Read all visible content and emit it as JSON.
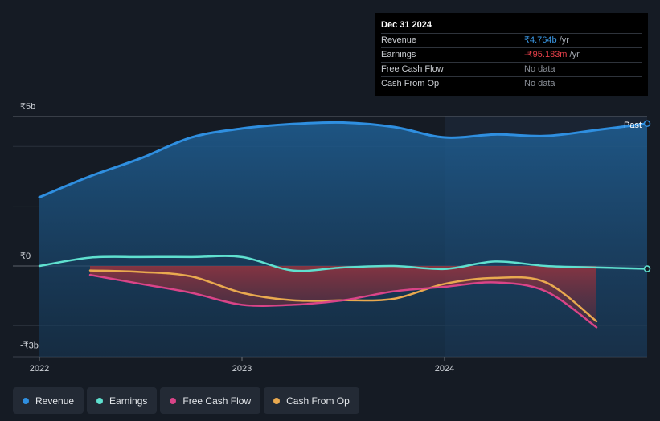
{
  "tooltip": {
    "date": "Dec 31 2024",
    "rows": [
      {
        "label": "Revenue",
        "value": "₹4.764b",
        "unit": " /yr",
        "color": "#3b9ae8"
      },
      {
        "label": "Earnings",
        "value": "-₹95.183m",
        "unit": " /yr",
        "color": "#e8404a"
      },
      {
        "label": "Free Cash Flow",
        "value": "No data",
        "unit": ""
      },
      {
        "label": "Cash From Op",
        "value": "No data",
        "unit": ""
      }
    ]
  },
  "legend": [
    {
      "label": "Revenue",
      "color": "#2f8fe0"
    },
    {
      "label": "Earnings",
      "color": "#5fe0cf"
    },
    {
      "label": "Free Cash Flow",
      "color": "#d94488"
    },
    {
      "label": "Cash From Op",
      "color": "#e9a94f"
    }
  ],
  "chart_data": {
    "type": "area",
    "currency_unit": "₹ billions",
    "ylim": [
      -3,
      5
    ],
    "y_tick_labels": [
      {
        "value": 5,
        "label": "₹5b"
      },
      {
        "value": 0,
        "label": "₹0"
      },
      {
        "value": -3,
        "label": "-₹3b"
      }
    ],
    "xlim": [
      2022,
      2025.0
    ],
    "x_tick_labels": [
      {
        "value": 2022,
        "label": "2022"
      },
      {
        "value": 2023,
        "label": "2023"
      },
      {
        "value": 2024,
        "label": "2024"
      }
    ],
    "past_label": "Past",
    "past_start": 2024.0,
    "series": [
      {
        "name": "Revenue",
        "color": "#2f8fe0",
        "x": [
          2022.0,
          2022.25,
          2022.5,
          2022.75,
          2023.0,
          2023.25,
          2023.5,
          2023.75,
          2024.0,
          2024.25,
          2024.5,
          2024.75,
          2025.0
        ],
        "y": [
          2.3,
          3.0,
          3.6,
          4.3,
          4.6,
          4.75,
          4.8,
          4.65,
          4.3,
          4.4,
          4.35,
          4.55,
          4.764
        ]
      },
      {
        "name": "Earnings",
        "color": "#5fe0cf",
        "x": [
          2022.0,
          2022.25,
          2022.5,
          2022.75,
          2023.0,
          2023.25,
          2023.5,
          2023.75,
          2024.0,
          2024.25,
          2024.5,
          2024.75,
          2025.0
        ],
        "y": [
          0.0,
          0.28,
          0.3,
          0.3,
          0.3,
          -0.15,
          -0.05,
          0.0,
          -0.1,
          0.15,
          0.0,
          -0.05,
          -0.095
        ]
      },
      {
        "name": "Free Cash Flow",
        "color": "#d94488",
        "x": [
          2022.25,
          2022.5,
          2022.75,
          2023.0,
          2023.25,
          2023.5,
          2023.75,
          2024.0,
          2024.25,
          2024.5,
          2024.75
        ],
        "y": [
          -0.3,
          -0.6,
          -0.9,
          -1.3,
          -1.3,
          -1.15,
          -0.85,
          -0.7,
          -0.55,
          -0.85,
          -2.05
        ]
      },
      {
        "name": "Cash From Op",
        "color": "#e9a94f",
        "x": [
          2022.25,
          2022.5,
          2022.75,
          2023.0,
          2023.25,
          2023.5,
          2023.75,
          2024.0,
          2024.25,
          2024.5,
          2024.75
        ],
        "y": [
          -0.15,
          -0.2,
          -0.35,
          -0.9,
          -1.15,
          -1.15,
          -1.1,
          -0.6,
          -0.4,
          -0.55,
          -1.85
        ]
      }
    ]
  }
}
